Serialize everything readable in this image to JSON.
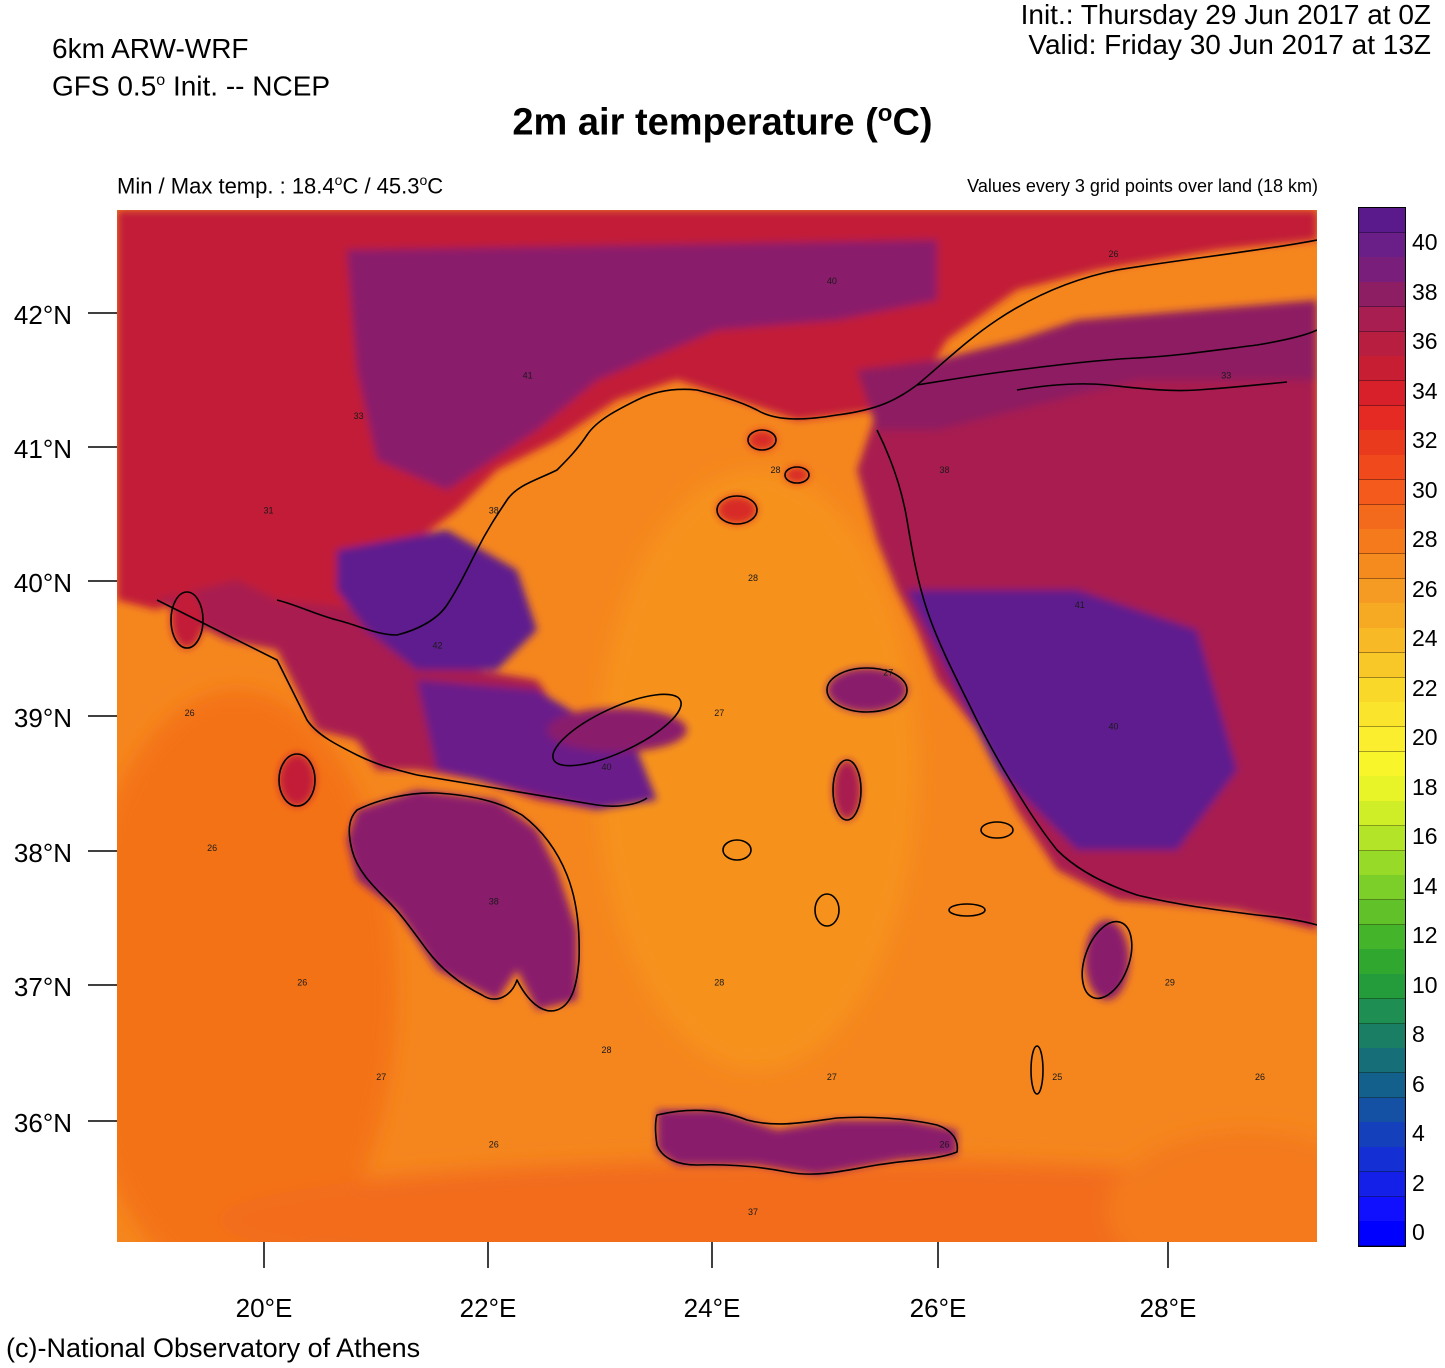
{
  "header": {
    "model": "6km ARW-WRF",
    "gfs_prefix": "GFS 0.5",
    "gfs_sup": "o",
    "gfs_suffix": " Init. -- NCEP",
    "init": "Init.:  Thursday 29 Jun 2017 at 0Z",
    "valid": "Valid: Friday 30 Jun 2017 at 13Z"
  },
  "title": {
    "main": "2m air temperature (",
    "sup": "o",
    "tail": "C)"
  },
  "minmax": {
    "prefix": "Min / Max temp. : 18.4",
    "unit_sup": "o",
    "mid": "C / 45.3",
    "tail": "C"
  },
  "note": "Values every 3 grid points over land (18 km)",
  "credit": "(c)-National Observatory of Athens",
  "map": {
    "lat_labels": [
      "42°N",
      "41°N",
      "40°N",
      "39°N",
      "38°N",
      "37°N",
      "36°N"
    ],
    "lon_labels": [
      "20°E",
      "22°E",
      "24°E",
      "26°E",
      "28°E"
    ],
    "sea_colors": [
      "#f58a1f",
      "#f57a1c",
      "#f06a1c"
    ],
    "land_hot": "#6a1e92",
    "land_warm": "#c81e3c",
    "land_mid": "#e8321c",
    "sample_values": [
      {
        "lon": 20.3,
        "lat": 37.0,
        "v": "26"
      },
      {
        "lon": 21.0,
        "lat": 36.3,
        "v": "27"
      },
      {
        "lon": 22.0,
        "lat": 35.8,
        "v": "26"
      },
      {
        "lon": 23.0,
        "lat": 36.5,
        "v": "28"
      },
      {
        "lon": 24.0,
        "lat": 37.0,
        "v": "28"
      },
      {
        "lon": 25.0,
        "lat": 36.3,
        "v": "27"
      },
      {
        "lon": 26.0,
        "lat": 35.8,
        "v": "26"
      },
      {
        "lon": 27.0,
        "lat": 36.3,
        "v": "25"
      },
      {
        "lon": 28.0,
        "lat": 37.0,
        "v": "29"
      },
      {
        "lon": 28.8,
        "lat": 36.3,
        "v": "26"
      },
      {
        "lon": 24.3,
        "lat": 40.0,
        "v": "28"
      },
      {
        "lon": 24.5,
        "lat": 40.8,
        "v": "28"
      },
      {
        "lon": 25.5,
        "lat": 39.3,
        "v": "27"
      },
      {
        "lon": 24.0,
        "lat": 39.0,
        "v": "27"
      },
      {
        "lon": 19.5,
        "lat": 38.0,
        "v": "26"
      },
      {
        "lon": 19.3,
        "lat": 39.0,
        "v": "26"
      },
      {
        "lon": 22.0,
        "lat": 40.5,
        "v": "38"
      },
      {
        "lon": 22.3,
        "lat": 41.5,
        "v": "41"
      },
      {
        "lon": 21.5,
        "lat": 39.5,
        "v": "42"
      },
      {
        "lon": 23.0,
        "lat": 38.6,
        "v": "40"
      },
      {
        "lon": 22.0,
        "lat": 37.6,
        "v": "38"
      },
      {
        "lon": 27.5,
        "lat": 38.9,
        "v": "40"
      },
      {
        "lon": 27.2,
        "lat": 39.8,
        "v": "41"
      },
      {
        "lon": 26.0,
        "lat": 40.8,
        "v": "38"
      },
      {
        "lon": 25.0,
        "lat": 42.2,
        "v": "40"
      },
      {
        "lon": 27.5,
        "lat": 42.4,
        "v": "26"
      },
      {
        "lon": 28.5,
        "lat": 41.5,
        "v": "33"
      },
      {
        "lon": 24.3,
        "lat": 35.3,
        "v": "37"
      },
      {
        "lon": 20.8,
        "lat": 41.2,
        "v": "33"
      },
      {
        "lon": 20.0,
        "lat": 40.5,
        "v": "31"
      }
    ]
  },
  "colorbar": {
    "labels": [
      "40",
      "38",
      "36",
      "34",
      "32",
      "30",
      "28",
      "26",
      "24",
      "22",
      "20",
      "18",
      "16",
      "14",
      "12",
      "10",
      "8",
      "6",
      "4",
      "2",
      "0"
    ],
    "colors": [
      "#5a1a8c",
      "#6a1e88",
      "#7a1e7c",
      "#8e1e64",
      "#a81e50",
      "#b81e40",
      "#c81e34",
      "#d8202a",
      "#e42a22",
      "#ea3a1e",
      "#f04a1c",
      "#f45a1c",
      "#f46a1c",
      "#f57a1c",
      "#f58a1f",
      "#f59a22",
      "#f6aa24",
      "#f7ba26",
      "#f8c828",
      "#f9d82a",
      "#fae42c",
      "#fbee2e",
      "#f8f62a",
      "#e8f428",
      "#d0ee28",
      "#b4e428",
      "#98da28",
      "#7cce28",
      "#60c228",
      "#44b42a",
      "#30a830",
      "#249c3c",
      "#1e8e52",
      "#1a7e64",
      "#166e78",
      "#14608c",
      "#1450a4",
      "#1440bc",
      "#1430d4",
      "#1420e8",
      "#1010ff",
      "#0000ff"
    ]
  }
}
